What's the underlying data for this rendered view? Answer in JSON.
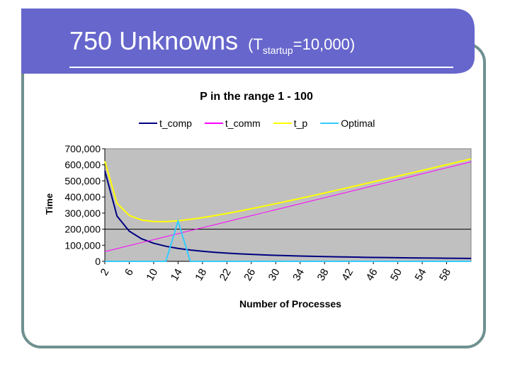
{
  "slide": {
    "title": "750 Unknowns",
    "title_paren_open": "(T",
    "title_subscript": "startup",
    "title_paren_close": "=10,000)"
  },
  "chart_data": {
    "type": "line",
    "title": "P in the range 1 - 100",
    "y_label": "Time",
    "x_label": "Number of Processes",
    "x": [
      2,
      4,
      6,
      8,
      10,
      12,
      14,
      16,
      18,
      20,
      22,
      24,
      26,
      28,
      30,
      32,
      34,
      36,
      38,
      40,
      42,
      44,
      46,
      48,
      50,
      52,
      54,
      56,
      58,
      60,
      62
    ],
    "xlim": [
      2,
      62
    ],
    "xticks": [
      2,
      6,
      10,
      14,
      18,
      22,
      26,
      30,
      34,
      38,
      42,
      46,
      50,
      54,
      58
    ],
    "ylim": [
      0,
      700000
    ],
    "yticks": [
      0,
      {
        "value": 100000,
        "label": "100,000"
      },
      {
        "value": 200000,
        "label": "200,000"
      },
      {
        "value": 300000,
        "label": "300,000"
      },
      {
        "value": 400000,
        "label": "400,000"
      },
      {
        "value": 500000,
        "label": "500,000"
      },
      {
        "value": 600000,
        "label": "600,000"
      },
      {
        "value": 700000,
        "label": "700,000"
      }
    ],
    "y_gridlines": [
      200000
    ],
    "plot_background": "#c0c0c0",
    "legend_position": "top",
    "series": [
      {
        "name": "t_comp",
        "color": "#000080",
        "values": [
          562500,
          281250,
          187500,
          140625,
          112500,
          93750,
          80357,
          70313,
          62500,
          56250,
          51136,
          46875,
          43269,
          40179,
          37500,
          35156,
          33088,
          31250,
          29605,
          28125,
          26786,
          25568,
          24457,
          23438,
          22500,
          21635,
          20833,
          20089,
          19397,
          18750,
          18145
        ]
      },
      {
        "name": "t_comm",
        "color": "#ff00ff",
        "values": [
          60600,
          79200,
          97800,
          116400,
          135000,
          153600,
          172200,
          190800,
          209400,
          228000,
          246600,
          265200,
          283800,
          302400,
          321000,
          339600,
          358200,
          376800,
          395400,
          414000,
          432600,
          451200,
          469800,
          488400,
          507000,
          525600,
          544200,
          562800,
          581400,
          600000,
          618600
        ]
      },
      {
        "name": "t_p",
        "color": "#ffff00",
        "values": [
          623100,
          360450,
          285300,
          257025,
          247500,
          247350,
          252557,
          261113,
          271900,
          284250,
          297736,
          312075,
          327069,
          342579,
          358500,
          374756,
          391288,
          408050,
          425005,
          442125,
          459386,
          476768,
          494257,
          511838,
          529500,
          547235,
          565033,
          582889,
          600797,
          618750,
          636745
        ]
      },
      {
        "name": "Optimal",
        "color": "#33ccff",
        "values": [
          0,
          0,
          0,
          0,
          0,
          0,
          250000,
          0,
          0,
          0,
          0,
          0,
          0,
          0,
          0,
          0,
          0,
          0,
          0,
          0,
          0,
          0,
          0,
          0,
          0,
          0,
          0,
          0,
          0,
          0,
          0
        ]
      }
    ]
  }
}
